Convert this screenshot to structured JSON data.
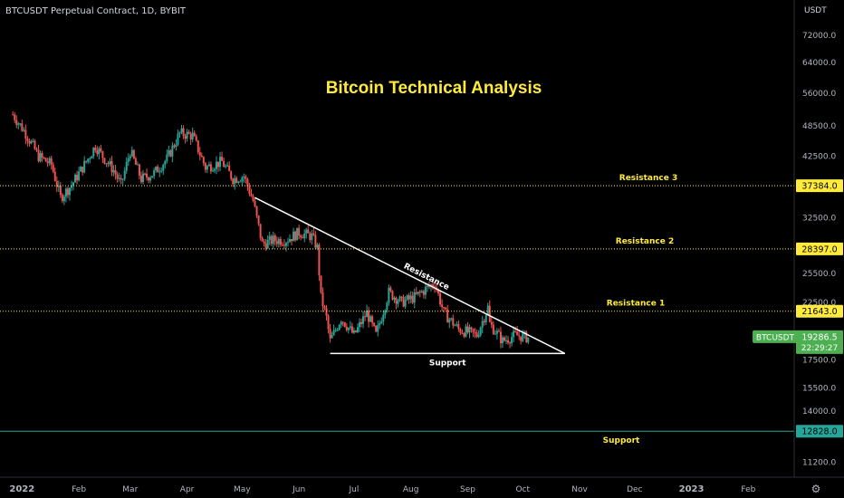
{
  "header": {
    "symbol_line": "BTCUSDT Perpetual Contract, 1D, BYBIT"
  },
  "chart_data": {
    "type": "candlestick",
    "title": "Bitcoin Technical Analysis",
    "y_axis_unit": "USDT",
    "y_scale": "log",
    "ylim": [
      10500,
      84000
    ],
    "y_ticks": [
      "72000.0",
      "64000.0",
      "56000.0",
      "48500.0",
      "42500.0",
      "32500.0",
      "25500.0",
      "22500.0",
      "17500.0",
      "15500.0",
      "14000.0",
      "11200.0"
    ],
    "x_range": [
      "2021-12-20",
      "2023-02-26"
    ],
    "x_ticks": [
      {
        "label": "2022",
        "date": "2022-01-01",
        "bold": true
      },
      {
        "label": "Feb",
        "date": "2022-02-01"
      },
      {
        "label": "Mar",
        "date": "2022-03-01"
      },
      {
        "label": "Apr",
        "date": "2022-04-01"
      },
      {
        "label": "May",
        "date": "2022-05-01"
      },
      {
        "label": "Jun",
        "date": "2022-06-01"
      },
      {
        "label": "Jul",
        "date": "2022-07-01"
      },
      {
        "label": "Aug",
        "date": "2022-08-01"
      },
      {
        "label": "Sep",
        "date": "2022-09-01"
      },
      {
        "label": "Oct",
        "date": "2022-10-01"
      },
      {
        "label": "Nov",
        "date": "2022-11-01"
      },
      {
        "label": "Dec",
        "date": "2022-12-01"
      },
      {
        "label": "2023",
        "date": "2023-01-01",
        "bold": true
      },
      {
        "label": "Feb",
        "date": "2023-02-01"
      }
    ],
    "levels": [
      {
        "label": "Resistance 3",
        "value": 37384.0,
        "tag": "37384.0"
      },
      {
        "label": "Resistance 2",
        "value": 28397.0,
        "tag": "28397.0"
      },
      {
        "label": "Resistance 1",
        "value": 21643.0,
        "tag": "21643.0"
      },
      {
        "label": "Support",
        "value": 12828.0,
        "tag": "12828.0"
      }
    ],
    "trendlines": [
      {
        "label": "Resistance",
        "from": {
          "date": "2022-05-08",
          "value": 35500
        },
        "to": {
          "date": "2022-10-24",
          "value": 18000
        }
      },
      {
        "label": "Support",
        "from": {
          "date": "2022-06-18",
          "value": 18000
        },
        "to": {
          "date": "2022-10-24",
          "value": 18000
        }
      }
    ],
    "current_price": {
      "symbol": "BTCUSDT",
      "value": "19286.5",
      "countdown": "22:29:27"
    },
    "price_path": [
      {
        "date": "2021-12-27",
        "value": 51000
      },
      {
        "date": "2022-01-03",
        "value": 47000
      },
      {
        "date": "2022-01-10",
        "value": 42500
      },
      {
        "date": "2022-01-17",
        "value": 41000
      },
      {
        "date": "2022-01-22",
        "value": 35500
      },
      {
        "date": "2022-01-28",
        "value": 37500
      },
      {
        "date": "2022-02-05",
        "value": 41500
      },
      {
        "date": "2022-02-10",
        "value": 44500
      },
      {
        "date": "2022-02-14",
        "value": 42500
      },
      {
        "date": "2022-02-20",
        "value": 40000
      },
      {
        "date": "2022-02-24",
        "value": 37500
      },
      {
        "date": "2022-03-01",
        "value": 43500
      },
      {
        "date": "2022-03-07",
        "value": 38500
      },
      {
        "date": "2022-03-14",
        "value": 39500
      },
      {
        "date": "2022-03-21",
        "value": 42000
      },
      {
        "date": "2022-03-28",
        "value": 47000
      },
      {
        "date": "2022-04-04",
        "value": 46500
      },
      {
        "date": "2022-04-11",
        "value": 40500
      },
      {
        "date": "2022-04-20",
        "value": 41500
      },
      {
        "date": "2022-04-26",
        "value": 38500
      },
      {
        "date": "2022-05-02",
        "value": 39000
      },
      {
        "date": "2022-05-07",
        "value": 35000
      },
      {
        "date": "2022-05-12",
        "value": 29000
      },
      {
        "date": "2022-05-18",
        "value": 29500
      },
      {
        "date": "2022-05-25",
        "value": 29500
      },
      {
        "date": "2022-06-01",
        "value": 30500
      },
      {
        "date": "2022-06-08",
        "value": 30000
      },
      {
        "date": "2022-06-11",
        "value": 28500
      },
      {
        "date": "2022-06-13",
        "value": 23000
      },
      {
        "date": "2022-06-16",
        "value": 21000
      },
      {
        "date": "2022-06-18",
        "value": 19000
      },
      {
        "date": "2022-06-24",
        "value": 21000
      },
      {
        "date": "2022-07-01",
        "value": 19500
      },
      {
        "date": "2022-07-08",
        "value": 21500
      },
      {
        "date": "2022-07-13",
        "value": 19500
      },
      {
        "date": "2022-07-20",
        "value": 23500
      },
      {
        "date": "2022-07-27",
        "value": 22500
      },
      {
        "date": "2022-08-03",
        "value": 23000
      },
      {
        "date": "2022-08-14",
        "value": 24500
      },
      {
        "date": "2022-08-19",
        "value": 21500
      },
      {
        "date": "2022-08-27",
        "value": 20000
      },
      {
        "date": "2022-09-06",
        "value": 19500
      },
      {
        "date": "2022-09-12",
        "value": 22000
      },
      {
        "date": "2022-09-13",
        "value": 20500
      },
      {
        "date": "2022-09-20",
        "value": 19000
      },
      {
        "date": "2022-09-27",
        "value": 19500
      },
      {
        "date": "2022-10-04",
        "value": 19286.5
      }
    ]
  },
  "colors": {
    "background": "#000000",
    "up": "#26a69a",
    "down": "#ef5350",
    "title": "#ffeb3b",
    "level_tag": "#ffeb3b",
    "support_line": "#26a69a",
    "price_tag": "#4caf50"
  }
}
